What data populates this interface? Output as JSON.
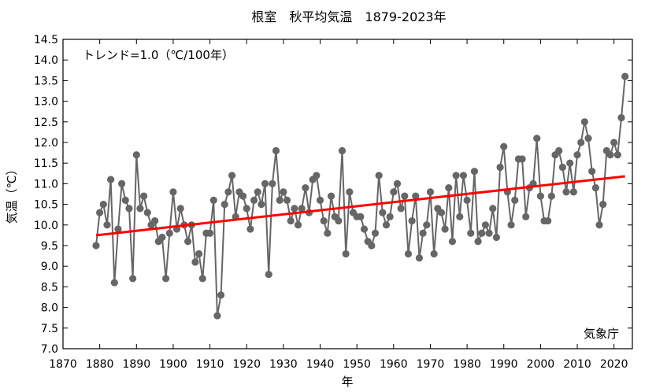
{
  "chart_data": {
    "type": "line",
    "title": "根室　秋平均気温　1879-2023年",
    "xlabel": "年",
    "ylabel": "気温（℃）",
    "annotation": "トレンド=1.0（℃/100年）",
    "source": "気象庁",
    "xlim": [
      1870,
      2025
    ],
    "ylim": [
      7.0,
      14.5
    ],
    "xticks": [
      1870,
      1880,
      1890,
      1900,
      1910,
      1920,
      1930,
      1940,
      1950,
      1960,
      1970,
      1980,
      1990,
      2000,
      2010,
      2020
    ],
    "yticks": [
      7.0,
      7.5,
      8.0,
      8.5,
      9.0,
      9.5,
      10.0,
      10.5,
      11.0,
      11.5,
      12.0,
      12.5,
      13.0,
      13.5,
      14.0,
      14.5
    ],
    "grid": false,
    "colors": {
      "series": "#666666",
      "trend": "#ff0000"
    },
    "series": [
      {
        "x": [
          1879,
          1880,
          1881,
          1882,
          1883,
          1884,
          1885,
          1886,
          1887,
          1888,
          1889,
          1890,
          1891,
          1892,
          1893,
          1894,
          1895,
          1896,
          1897,
          1898,
          1899,
          1900,
          1901,
          1902,
          1903,
          1904,
          1905,
          1906,
          1907,
          1908,
          1909,
          1910,
          1911,
          1912,
          1913,
          1914,
          1915,
          1916,
          1917,
          1918,
          1919,
          1920,
          1921,
          1922,
          1923,
          1924,
          1925,
          1926,
          1927,
          1928,
          1929,
          1930,
          1931,
          1932,
          1933,
          1934,
          1935,
          1936,
          1937,
          1938,
          1939,
          1940,
          1941,
          1942,
          1943,
          1944,
          1945,
          1946,
          1947,
          1948,
          1949,
          1950,
          1951,
          1952,
          1953,
          1954,
          1955,
          1956,
          1957,
          1958,
          1959,
          1960,
          1961,
          1962,
          1963,
          1964,
          1965,
          1966,
          1967,
          1968,
          1969,
          1970,
          1971,
          1972,
          1973,
          1974,
          1975,
          1976,
          1977,
          1978,
          1979,
          1980,
          1981,
          1982,
          1983,
          1984,
          1985,
          1986,
          1987,
          1988,
          1989,
          1990,
          1991,
          1992,
          1993,
          1994,
          1995,
          1996,
          1997,
          1998,
          1999,
          2000,
          2001,
          2002,
          2003,
          2004,
          2005,
          2006,
          2007,
          2008,
          2009,
          2010,
          2011,
          2012,
          2013,
          2014,
          2015,
          2016,
          2017,
          2018,
          2019,
          2020,
          2021,
          2022,
          2023
        ],
        "values": [
          9.5,
          10.3,
          10.5,
          10.0,
          11.1,
          8.6,
          9.9,
          11.0,
          10.6,
          10.4,
          8.7,
          11.7,
          10.4,
          10.7,
          10.3,
          10.0,
          10.1,
          9.6,
          9.7,
          8.7,
          9.8,
          10.8,
          9.9,
          10.4,
          10.0,
          9.6,
          10.0,
          9.1,
          9.3,
          8.7,
          9.8,
          9.8,
          10.6,
          7.8,
          8.3,
          10.5,
          10.8,
          11.2,
          10.2,
          10.8,
          10.7,
          10.4,
          9.9,
          10.6,
          10.8,
          10.5,
          11.0,
          8.8,
          11.0,
          11.8,
          10.6,
          10.8,
          10.6,
          10.1,
          10.4,
          10.0,
          10.4,
          10.9,
          10.3,
          11.1,
          11.2,
          10.6,
          10.1,
          9.8,
          10.7,
          10.2,
          10.1,
          11.8,
          9.3,
          10.8,
          10.3,
          10.2,
          10.2,
          9.9,
          9.6,
          9.5,
          9.8,
          11.2,
          10.3,
          10.0,
          10.2,
          10.8,
          11.0,
          10.4,
          10.7,
          9.3,
          10.1,
          10.7,
          9.2,
          9.8,
          10.0,
          10.8,
          9.3,
          10.4,
          10.3,
          9.9,
          10.9,
          9.6,
          11.2,
          10.2,
          11.2,
          10.6,
          9.8,
          11.3,
          9.6,
          9.8,
          10.0,
          9.8,
          10.4,
          9.7,
          11.4,
          11.9,
          10.8,
          10.0,
          10.6,
          11.6,
          11.6,
          10.2,
          10.9,
          11.0,
          12.1,
          10.7,
          10.1,
          10.1,
          10.7,
          11.7,
          11.8,
          11.4,
          10.8,
          11.5,
          10.8,
          11.7,
          12.0,
          12.5,
          12.1,
          11.3,
          10.9,
          10.0,
          10.5,
          11.8,
          11.7,
          12.0,
          11.7,
          12.6,
          13.6
        ]
      }
    ],
    "trend": {
      "x": [
        1879,
        2023
      ],
      "y": [
        9.75,
        11.18
      ]
    }
  }
}
